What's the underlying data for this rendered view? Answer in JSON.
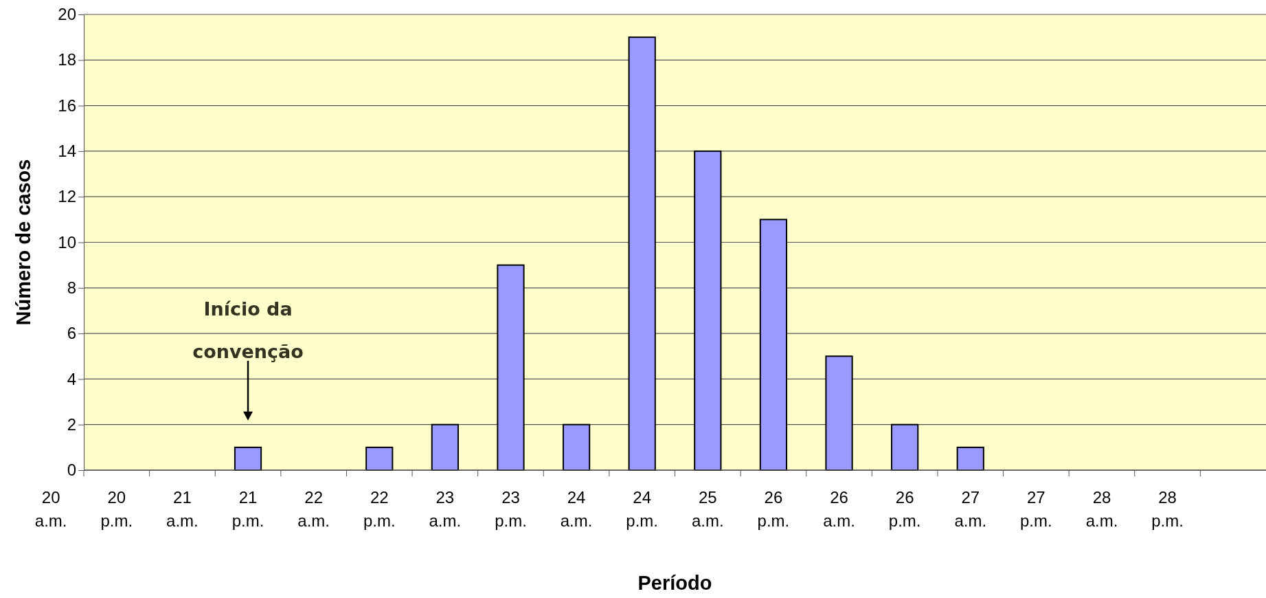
{
  "chart_data": {
    "type": "bar",
    "xlabel": "Período",
    "ylabel": "Número de casos",
    "categories": [
      "20 a.m.",
      "20 p.m.",
      "21 a.m.",
      "21 p.m.",
      "22 a.m.",
      "22 p.m.",
      "23 a.m.",
      "23 p.m.",
      "24 a.m.",
      "24 p.m.",
      "25 a.m.",
      "26 p.m.",
      "26 a.m.",
      "26 p.m.",
      "27 a.m.",
      "27 p.m.",
      "28 a.m.",
      "28 p.m."
    ],
    "values": [
      0,
      0,
      0,
      1,
      0,
      1,
      2,
      9,
      2,
      19,
      14,
      11,
      5,
      2,
      1,
      0,
      0,
      0
    ],
    "color": "#9999ff",
    "ylim": [
      0,
      20
    ],
    "yticks": [
      0,
      2,
      4,
      6,
      8,
      10,
      12,
      14,
      16,
      18,
      20
    ],
    "grid": "y",
    "annotations": [
      "Início da convenção"
    ]
  }
}
